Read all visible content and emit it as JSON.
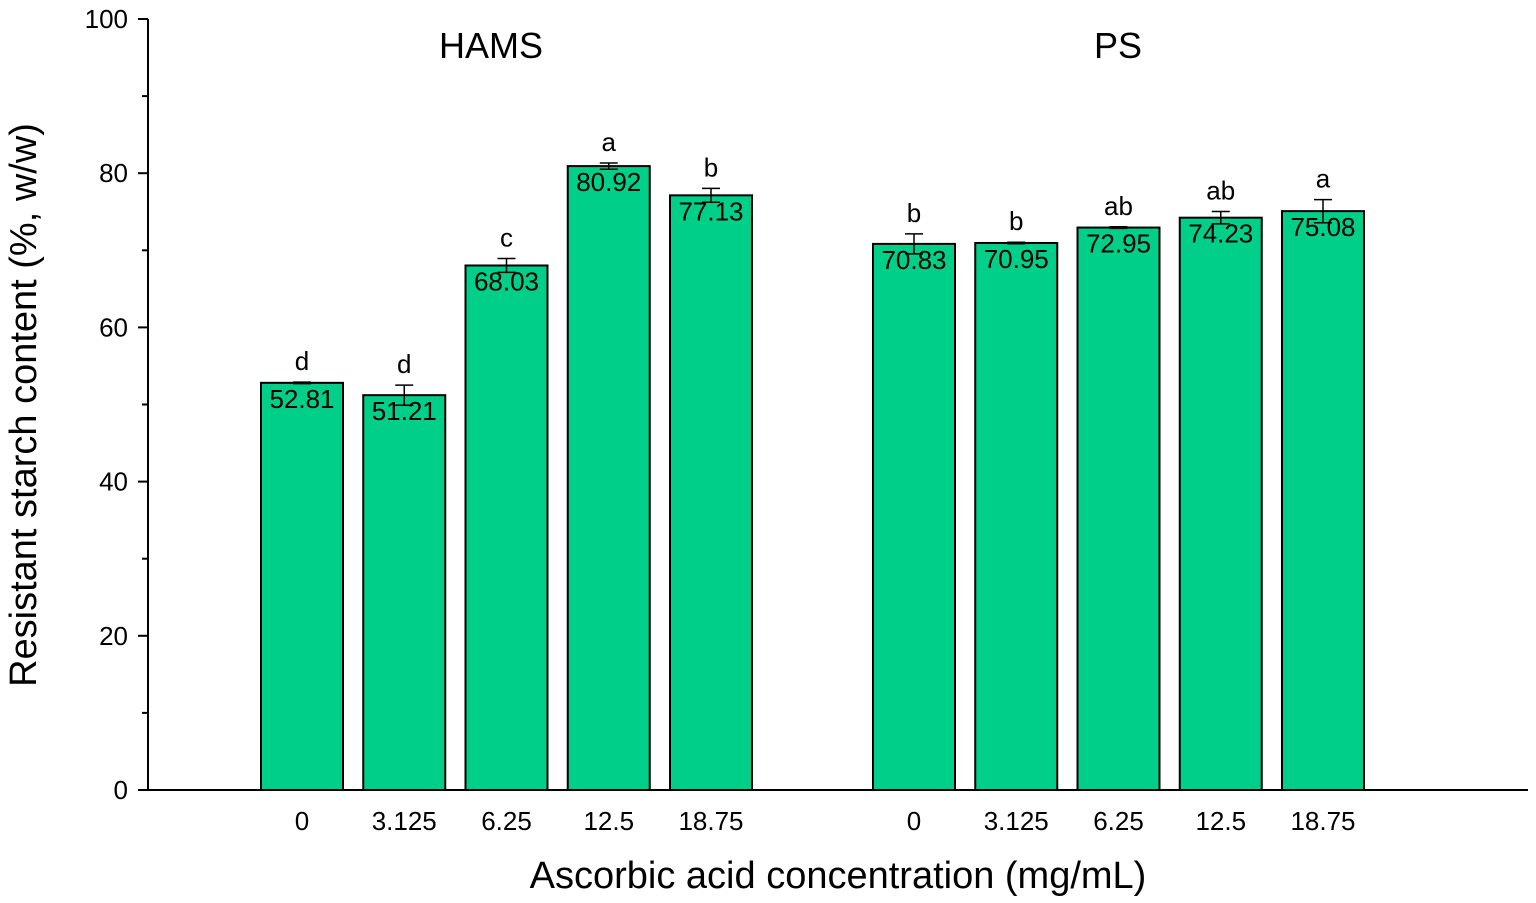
{
  "chart_data": {
    "type": "bar",
    "xlabel": "Ascorbic acid concentration (mg/mL)",
    "ylabel": "Resistant starch content (%, w/w)",
    "ylim": [
      0,
      100
    ],
    "yticks": [
      "0",
      "20",
      "40",
      "60",
      "80",
      "100"
    ],
    "grid": false,
    "bar_color": "#00CF8A",
    "groups": [
      {
        "name": "HAMS",
        "categories": [
          "0",
          "3.125",
          "6.25",
          "12.5",
          "18.75"
        ],
        "values": [
          52.81,
          51.21,
          68.03,
          80.92,
          77.13
        ],
        "value_labels": [
          "52.81",
          "51.21",
          "68.03",
          "80.92",
          "77.13"
        ],
        "errors": [
          0.1,
          1.3,
          0.9,
          0.4,
          0.9
        ],
        "significance": [
          "d",
          "d",
          "c",
          "a",
          "b"
        ]
      },
      {
        "name": "PS",
        "categories": [
          "0",
          "3.125",
          "6.25",
          "12.5",
          "18.75"
        ],
        "values": [
          70.83,
          70.95,
          72.95,
          74.23,
          75.08
        ],
        "value_labels": [
          "70.83",
          "70.95",
          "72.95",
          "74.23",
          "75.08"
        ],
        "errors": [
          1.3,
          0.1,
          0.1,
          0.8,
          1.5
        ],
        "significance": [
          "b",
          "b",
          "ab",
          "ab",
          "a"
        ]
      }
    ]
  }
}
